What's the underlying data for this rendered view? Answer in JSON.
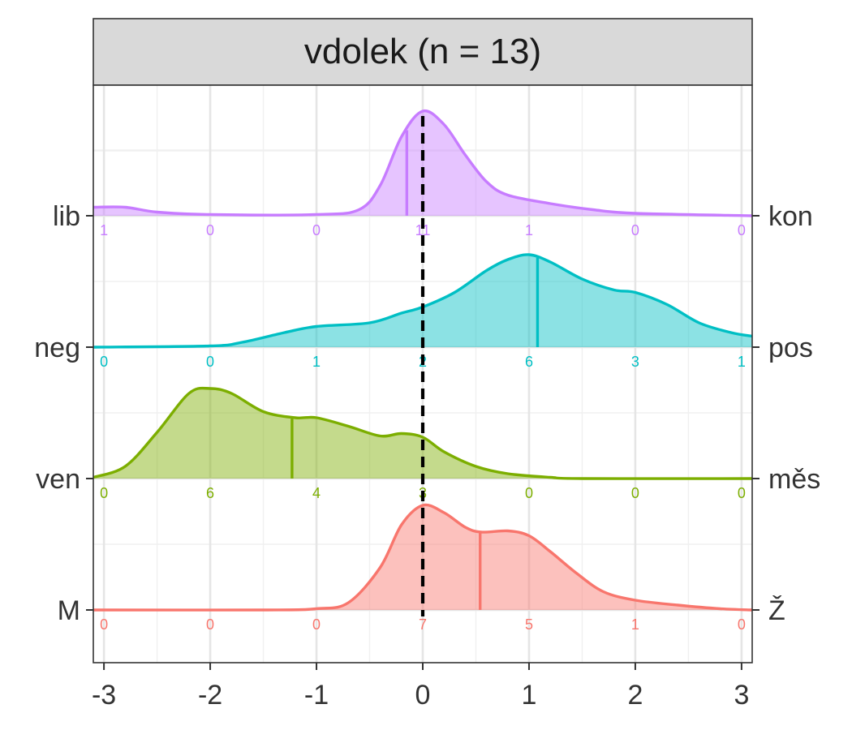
{
  "chart_data": {
    "type": "ridgeline",
    "title": "vdolek (n = 13)",
    "xlim": [
      -3.1,
      3.1
    ],
    "x_ticks": [
      -3,
      -2,
      -1,
      0,
      1,
      2,
      3
    ],
    "x_tick_labels": [
      "-3",
      "-2",
      "-1",
      "0",
      "1",
      "2",
      "3"
    ],
    "x_minor_ticks": [
      -2.5,
      -1.5,
      -0.5,
      0.5,
      1.5,
      2.5
    ],
    "reference_line_x": 0,
    "series": [
      {
        "left_label": "M",
        "right_label": "Ž",
        "color": "#F8766D",
        "counts": [
          0,
          0,
          0,
          7,
          5,
          1,
          0
        ],
        "mean": 0.54,
        "density": [
          [
            -3.1,
            0
          ],
          [
            -1.5,
            0
          ],
          [
            -1.0,
            0.01
          ],
          [
            -0.7,
            0.06
          ],
          [
            -0.4,
            0.35
          ],
          [
            -0.2,
            0.7
          ],
          [
            0,
            0.86
          ],
          [
            0.2,
            0.8
          ],
          [
            0.4,
            0.68
          ],
          [
            0.55,
            0.64
          ],
          [
            0.8,
            0.65
          ],
          [
            1.0,
            0.61
          ],
          [
            1.2,
            0.48
          ],
          [
            1.45,
            0.3
          ],
          [
            1.7,
            0.15
          ],
          [
            2.0,
            0.08
          ],
          [
            2.4,
            0.04
          ],
          [
            2.8,
            0.01
          ],
          [
            3.1,
            0
          ]
        ]
      },
      {
        "left_label": "ven",
        "right_label": "měs",
        "color": "#7CAE00",
        "counts": [
          0,
          6,
          4,
          3,
          0,
          0,
          0
        ],
        "mean": -1.23,
        "density": [
          [
            -3.1,
            0.01
          ],
          [
            -2.8,
            0.1
          ],
          [
            -2.5,
            0.38
          ],
          [
            -2.2,
            0.7
          ],
          [
            -2.0,
            0.74
          ],
          [
            -1.8,
            0.7
          ],
          [
            -1.5,
            0.55
          ],
          [
            -1.2,
            0.5
          ],
          [
            -1.0,
            0.5
          ],
          [
            -0.7,
            0.43
          ],
          [
            -0.4,
            0.35
          ],
          [
            -0.2,
            0.37
          ],
          [
            0,
            0.34
          ],
          [
            0.2,
            0.22
          ],
          [
            0.5,
            0.1
          ],
          [
            0.8,
            0.04
          ],
          [
            1.2,
            0.01
          ],
          [
            1.5,
            0
          ],
          [
            3.1,
            0
          ]
        ]
      },
      {
        "left_label": "neg",
        "right_label": "pos",
        "color": "#00BFC4",
        "counts": [
          0,
          0,
          1,
          2,
          6,
          3,
          1
        ],
        "mean": 1.08,
        "density": [
          [
            -3.1,
            0
          ],
          [
            -2.0,
            0.01
          ],
          [
            -1.7,
            0.04
          ],
          [
            -1.3,
            0.12
          ],
          [
            -1.0,
            0.17
          ],
          [
            -0.5,
            0.2
          ],
          [
            -0.2,
            0.28
          ],
          [
            0,
            0.33
          ],
          [
            0.3,
            0.45
          ],
          [
            0.6,
            0.63
          ],
          [
            0.8,
            0.72
          ],
          [
            1.0,
            0.76
          ],
          [
            1.2,
            0.7
          ],
          [
            1.5,
            0.56
          ],
          [
            1.8,
            0.47
          ],
          [
            2.0,
            0.45
          ],
          [
            2.3,
            0.35
          ],
          [
            2.6,
            0.2
          ],
          [
            2.9,
            0.12
          ],
          [
            3.1,
            0.09
          ]
        ]
      },
      {
        "left_label": "lib",
        "right_label": "kon",
        "color": "#C77CFF",
        "counts": [
          1,
          0,
          0,
          11,
          1,
          0,
          0
        ],
        "mean": -0.15,
        "density": [
          [
            -3.1,
            0.07
          ],
          [
            -2.8,
            0.07
          ],
          [
            -2.5,
            0.03
          ],
          [
            -2.0,
            0.01
          ],
          [
            -1.0,
            0.01
          ],
          [
            -0.6,
            0.05
          ],
          [
            -0.4,
            0.25
          ],
          [
            -0.2,
            0.65
          ],
          [
            0,
            0.86
          ],
          [
            0.2,
            0.75
          ],
          [
            0.4,
            0.5
          ],
          [
            0.6,
            0.28
          ],
          [
            0.8,
            0.17
          ],
          [
            1.2,
            0.1
          ],
          [
            1.6,
            0.05
          ],
          [
            2.0,
            0.02
          ],
          [
            3.1,
            0
          ]
        ]
      }
    ]
  }
}
